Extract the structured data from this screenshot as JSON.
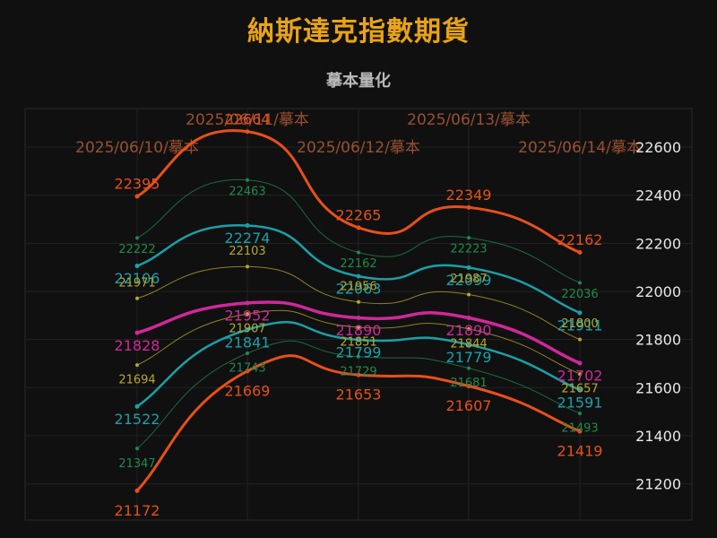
{
  "chart_data": {
    "type": "line",
    "title": "納斯達克指數期貨",
    "subtitle": "摹本量化",
    "categories": [
      "2025/06/10/摹本",
      "2025/06/11/摹本",
      "2025/06/12/摹本",
      "2025/06/13/摹本",
      "2025/06/14/摹本"
    ],
    "y_ticks": [
      21200,
      21400,
      21600,
      21800,
      22000,
      22200,
      22400,
      22600
    ],
    "ylim": [
      21050,
      22760
    ],
    "grid": true,
    "colors": {
      "orange": "#e8501a",
      "teal": "#1aa0a8",
      "green": "#1e8a4e",
      "olive": "#b8a82a",
      "magenta": "#d0289a",
      "category_label": "#9a5030",
      "axis_text": "#e8e8e8"
    },
    "series": [
      {
        "values": [
          22395,
          22664,
          22265,
          22349,
          22162
        ],
        "color": "orange",
        "width": 3,
        "label_size": 16,
        "label_offset": -14
      },
      {
        "values": [
          22222,
          22463,
          22162,
          22223,
          22036
        ],
        "color": "green",
        "width": 1,
        "label_size": 13,
        "label_offset": 12
      },
      {
        "values": [
          22106,
          22274,
          22063,
          22099,
          21911
        ],
        "color": "teal",
        "width": 2.5,
        "label_size": 16,
        "label_offset": 14
      },
      {
        "values": [
          21971,
          22103,
          21956,
          21987,
          21800
        ],
        "color": "olive",
        "width": 1,
        "label_size": 13,
        "label_offset": -18
      },
      {
        "values": [
          21828,
          21952,
          21890,
          21890,
          21702
        ],
        "color": "magenta",
        "width": 3.5,
        "label_size": 16,
        "label_offset": 14
      },
      {
        "values": [
          21694,
          21907,
          21851,
          21844,
          21657
        ],
        "color": "olive",
        "width": 1,
        "label_size": 13,
        "label_offset": 16
      },
      {
        "values": [
          21522,
          21841,
          21799,
          21779,
          21591
        ],
        "color": "teal",
        "width": 2.5,
        "label_size": 16,
        "label_offset": 14
      },
      {
        "values": [
          21347,
          21743,
          21729,
          21681,
          21493
        ],
        "color": "green",
        "width": 1,
        "label_size": 13,
        "label_offset": 16
      },
      {
        "values": [
          21172,
          21669,
          21653,
          21607,
          21419
        ],
        "color": "orange",
        "width": 3,
        "label_size": 16,
        "label_offset": 22
      }
    ]
  }
}
